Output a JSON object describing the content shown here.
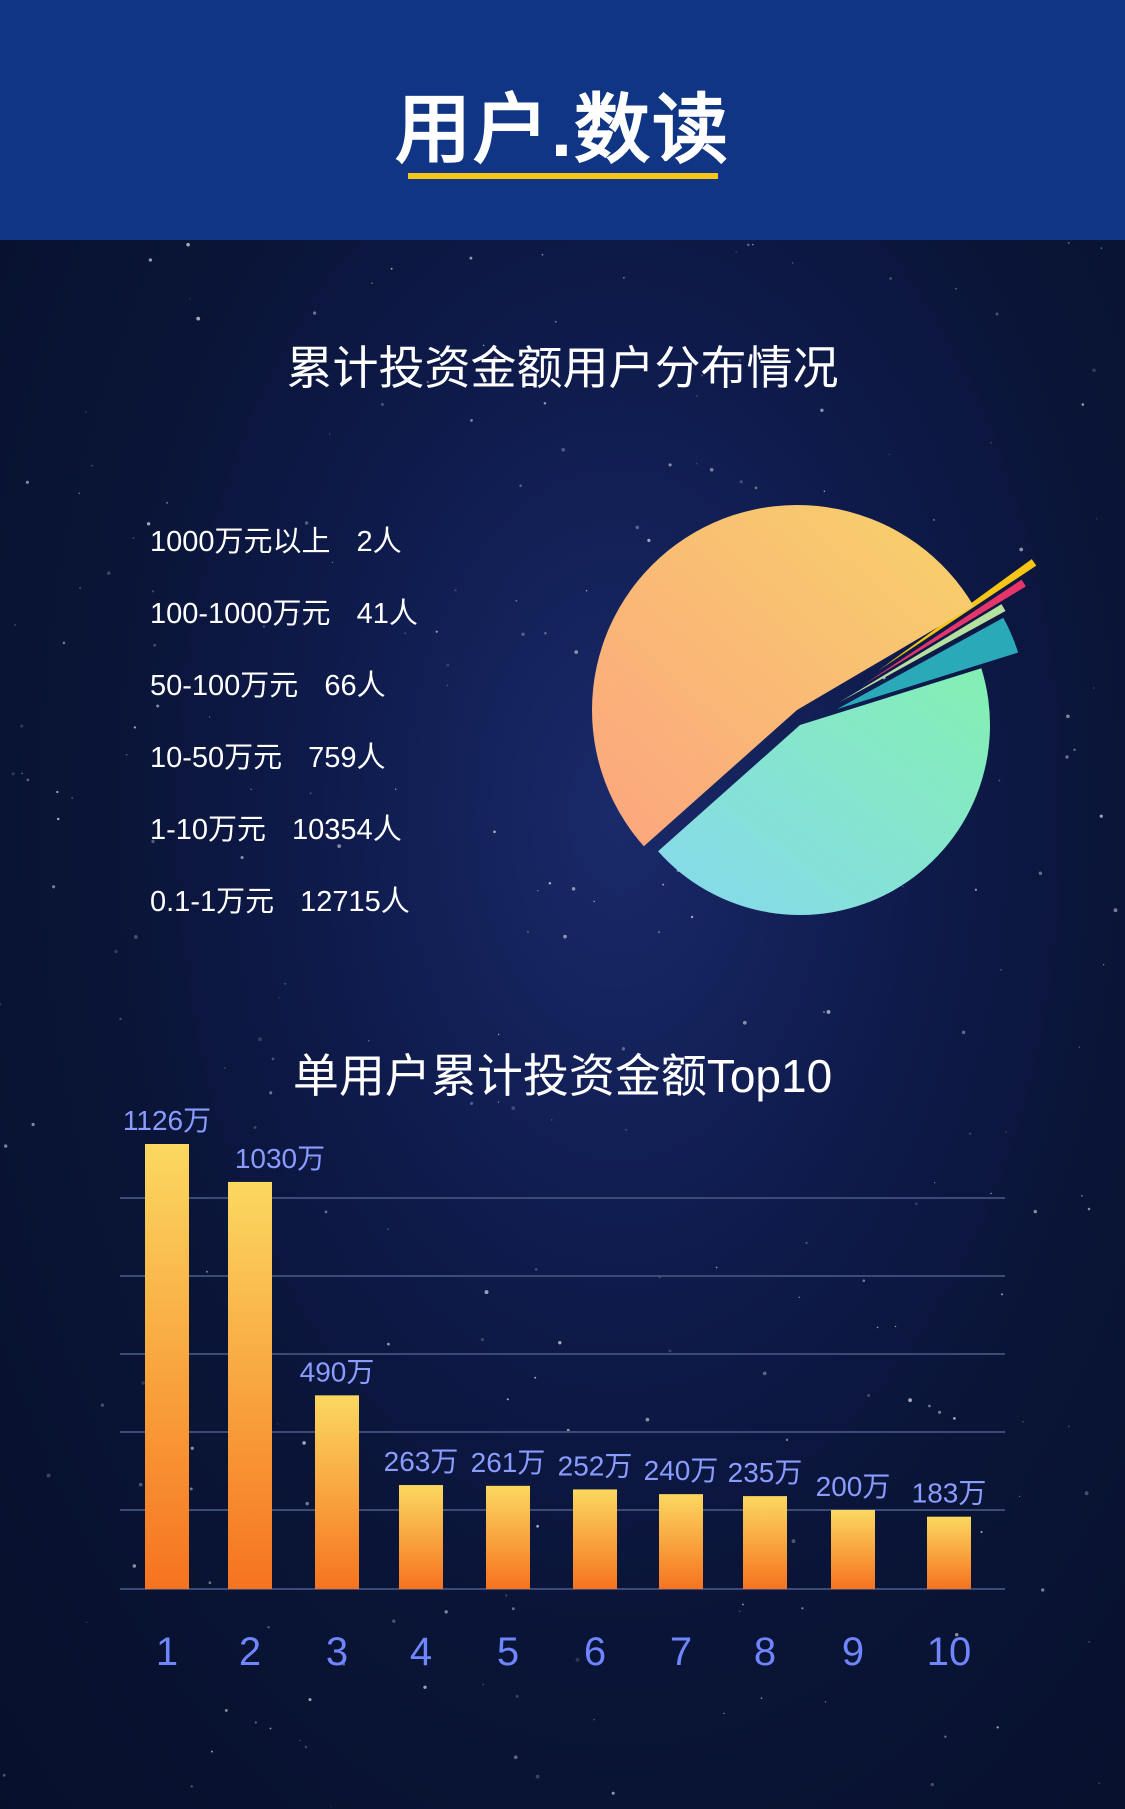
{
  "header": {
    "title": "用户.数读"
  },
  "pie_section": {
    "title": "累计投资金额用户分布情况"
  },
  "bar_section": {
    "title": "单用户累计投资金额Top10"
  },
  "chart_data": [
    {
      "type": "pie",
      "title": "累计投资金额用户分布情况",
      "slices": [
        {
          "label": "1000万元以上",
          "count_text": "2人",
          "value": 2,
          "color": "#f5c518"
        },
        {
          "label": "100-1000万元",
          "count_text": "41人",
          "value": 41,
          "color": "#e5356b"
        },
        {
          "label": "50-100万元",
          "count_text": "66人",
          "value": 66,
          "color": "#b6e0a0"
        },
        {
          "label": "10-50万元",
          "count_text": "759人",
          "value": 759,
          "color": "#2aa9b8"
        },
        {
          "label": "1-10万元",
          "count_text": "10354人",
          "value": 10354,
          "color": "#8de8c3"
        },
        {
          "label": "0.1-1万元",
          "count_text": "12715人",
          "value": 12715,
          "color": "#f8c26e"
        }
      ]
    },
    {
      "type": "bar",
      "title": "单用户累计投资金额Top10",
      "categories": [
        "1",
        "2",
        "3",
        "4",
        "5",
        "6",
        "7",
        "8",
        "9",
        "10"
      ],
      "values": [
        1126,
        1030,
        490,
        263,
        261,
        252,
        240,
        235,
        200,
        183
      ],
      "value_labels": [
        "1126万",
        "1030万",
        "490万",
        "263万",
        "261万",
        "252万",
        "240万",
        "235万",
        "200万",
        "183万"
      ],
      "unit": "万",
      "grid": true
    }
  ]
}
